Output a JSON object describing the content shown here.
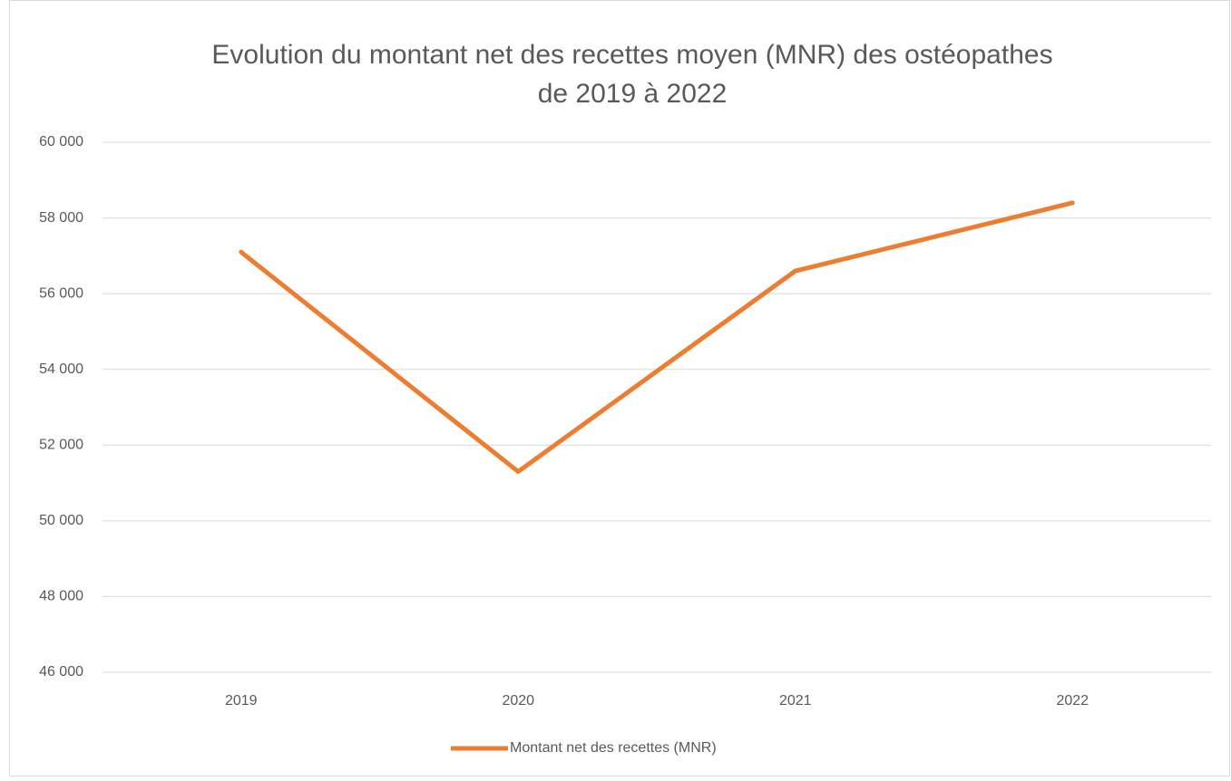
{
  "chart_data": {
    "type": "line",
    "title": [
      "Evolution du montant net des recettes moyen (MNR) des ostéopathes",
      "de 2019 à 2022"
    ],
    "categories": [
      "2019",
      "2020",
      "2021",
      "2022"
    ],
    "series": [
      {
        "name": "Montant net des recettes (MNR)",
        "color": "#ed7d31",
        "values": [
          57100,
          51300,
          56600,
          58400
        ]
      }
    ],
    "ylim": [
      46000,
      60000
    ],
    "yticks": [
      {
        "value": 46000,
        "label": "46 000"
      },
      {
        "value": 48000,
        "label": "48 000"
      },
      {
        "value": 50000,
        "label": "50 000"
      },
      {
        "value": 52000,
        "label": "52 000"
      },
      {
        "value": 54000,
        "label": "54 000"
      },
      {
        "value": 56000,
        "label": "56 000"
      },
      {
        "value": 58000,
        "label": "58 000"
      },
      {
        "value": 60000,
        "label": "60 000"
      }
    ],
    "grid": true,
    "legend": "bottom"
  }
}
